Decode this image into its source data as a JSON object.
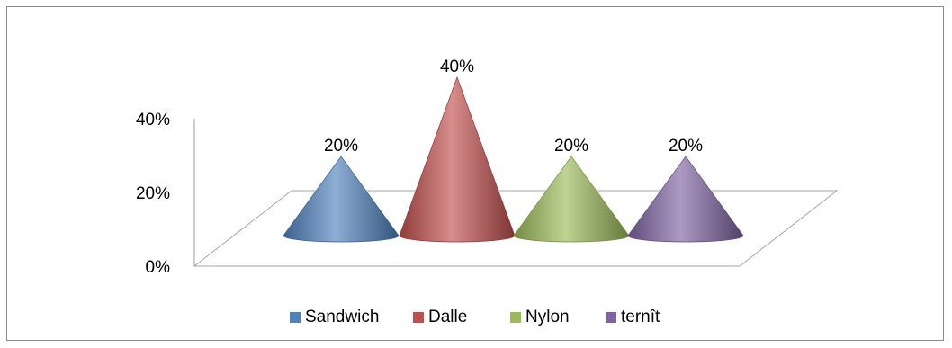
{
  "chart_data": {
    "type": "bar",
    "style": "3d-cone",
    "categories": [
      "Sandwich",
      "Dalle",
      "Nylon",
      "ternît"
    ],
    "values": [
      20,
      40,
      20,
      20
    ],
    "data_labels": [
      "20%",
      "40%",
      "20%",
      "20%"
    ],
    "y_ticks": [
      "0%",
      "20%",
      "40%"
    ],
    "ylim": [
      0,
      40
    ],
    "grid": false,
    "legend_position": "bottom",
    "colors": [
      "#4f81bd",
      "#c0504d",
      "#9bbb59",
      "#8064a2"
    ]
  }
}
